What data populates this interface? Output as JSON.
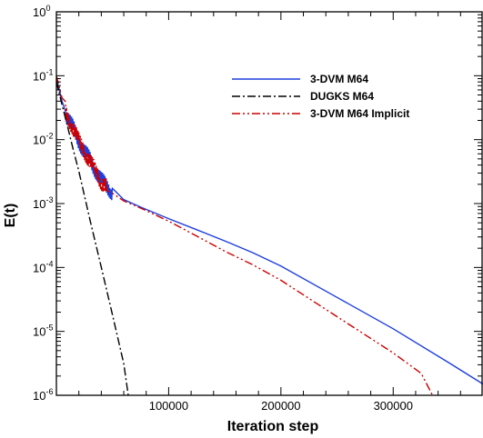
{
  "chart_data": {
    "type": "line",
    "xlabel": "Iteration step",
    "ylabel": "E(t)",
    "xlim": [
      0,
      380000
    ],
    "ylim": [
      1e-06,
      1
    ],
    "yscale": "log",
    "x_ticks": [
      100000,
      200000,
      300000
    ],
    "y_ticks": [
      {
        "value": 1e-06,
        "exp": "-6"
      },
      {
        "value": 1e-05,
        "exp": "-5"
      },
      {
        "value": 0.0001,
        "exp": "-4"
      },
      {
        "value": 0.001,
        "exp": "-3"
      },
      {
        "value": 0.01,
        "exp": "-2"
      },
      {
        "value": 0.1,
        "exp": "-1"
      },
      {
        "value": 1,
        "exp": "0"
      }
    ],
    "y_tick_base": "10",
    "legend_position": "top-right",
    "series": [
      {
        "name": "3-DVM M64",
        "color": "#1f3fdd",
        "dash": "solid",
        "oscillation": {
          "x_start": 8000,
          "x_end": 50000
        },
        "x": [
          0,
          5000,
          10000,
          15000,
          20000,
          25000,
          30000,
          35000,
          40000,
          50000,
          60000,
          75000,
          100000,
          125000,
          150000,
          175000,
          200000,
          250000,
          300000,
          350000,
          380000
        ],
        "y": [
          0.09,
          0.04,
          0.022,
          0.015,
          0.0095,
          0.0065,
          0.0048,
          0.0033,
          0.0023,
          0.0015,
          0.00115,
          0.00088,
          0.00058,
          0.00039,
          0.00026,
          0.00017,
          0.000105,
          3.4e-05,
          1.1e-05,
          3.2e-06,
          1.5e-06
        ]
      },
      {
        "name": "DUGKS M64",
        "color": "#000000",
        "dash": "dashdot",
        "x": [
          0,
          5000,
          10000,
          15000,
          20000,
          30000,
          40000,
          50000,
          60000,
          64000
        ],
        "y": [
          0.08,
          0.035,
          0.016,
          0.007,
          0.0032,
          0.00055,
          0.0001,
          1.8e-05,
          3.1e-06,
          1e-06
        ]
      },
      {
        "name": "3-DVM M64 Implicit",
        "color": "#cc0000",
        "dash": "dashdotdot",
        "oscillation": {
          "x_start": 8000,
          "x_end": 45000
        },
        "x": [
          0,
          5000,
          10000,
          15000,
          20000,
          25000,
          30000,
          35000,
          40000,
          50000,
          60000,
          75000,
          100000,
          125000,
          150000,
          175000,
          200000,
          250000,
          300000,
          325000,
          335000
        ],
        "y": [
          0.1,
          0.045,
          0.022,
          0.015,
          0.0095,
          0.0065,
          0.0046,
          0.0032,
          0.0022,
          0.00145,
          0.0011,
          0.00085,
          0.00053,
          0.00031,
          0.00018,
          0.00011,
          6.3e-05,
          1.7e-05,
          4.6e-06,
          2.2e-06,
          1e-06
        ]
      }
    ]
  }
}
